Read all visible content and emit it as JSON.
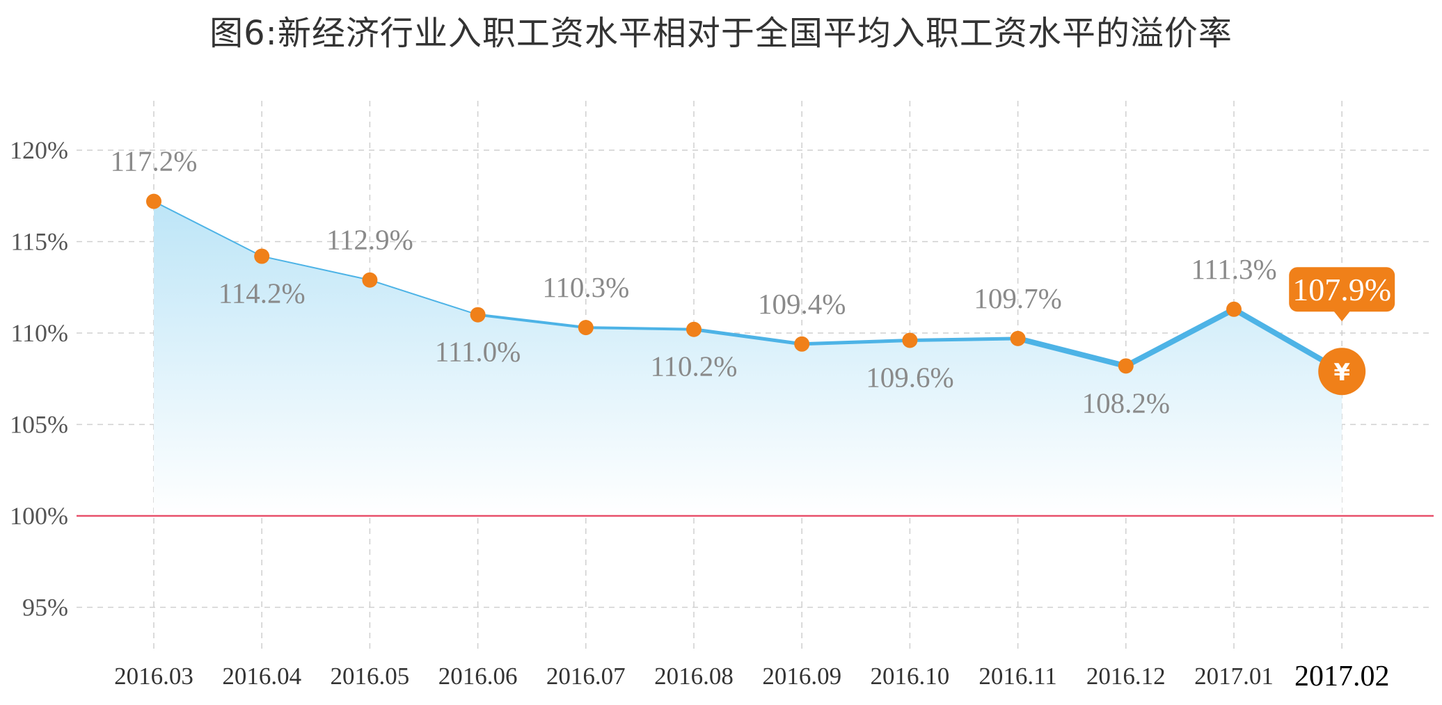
{
  "chart_data": {
    "type": "area",
    "title": "图6:新经济行业入职工资水平相对于全国平均入职工资水平的溢价率",
    "categories": [
      "2016.03",
      "2016.04",
      "2016.05",
      "2016.06",
      "2016.07",
      "2016.08",
      "2016.09",
      "2016.10",
      "2016.11",
      "2016.12",
      "2017.01",
      "2017.02"
    ],
    "series": [
      {
        "values": [
          117.2,
          114.2,
          112.9,
          111.0,
          110.3,
          110.2,
          109.4,
          109.6,
          109.7,
          108.2,
          111.3,
          107.9
        ],
        "labels": [
          "117.2%",
          "114.2%",
          "112.9%",
          "111.0%",
          "110.3%",
          "110.2%",
          "109.4%",
          "109.6%",
          "109.7%",
          "108.2%",
          "111.3%",
          "107.9%"
        ],
        "label_positions": [
          "above",
          "below",
          "above",
          "below",
          "above",
          "below",
          "above",
          "below",
          "above",
          "below",
          "above",
          "callout"
        ],
        "color": "#4db3e6",
        "marker_color": "#f08019"
      }
    ],
    "ylim": [
      92.5,
      122.5
    ],
    "yticks": [
      95,
      100,
      105,
      110,
      115,
      120
    ],
    "ytick_labels": [
      "95%",
      "100%",
      "105%",
      "110%",
      "115%",
      "120%"
    ],
    "reference_line": {
      "value": 100,
      "color": "#e8506a"
    },
    "grid": true,
    "highlight": {
      "index": 11,
      "callout_label": "107.9%",
      "icon": "yen-coin-icon",
      "icon_glyph": "¥",
      "color": "#f08019"
    }
  }
}
